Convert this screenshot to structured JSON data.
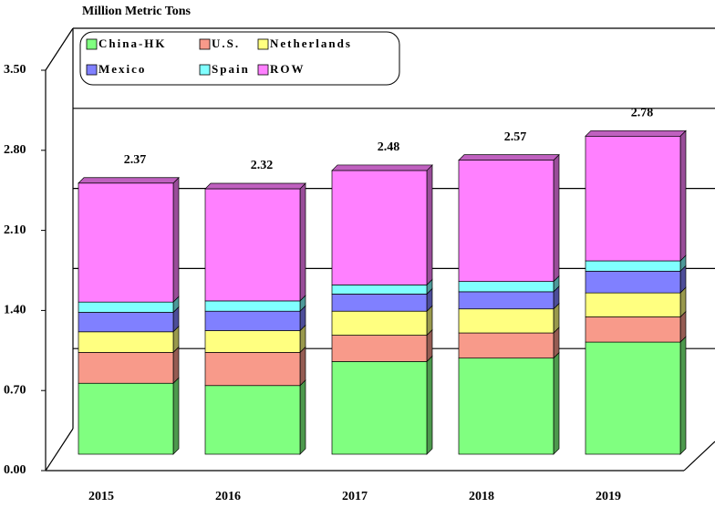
{
  "chart_data": {
    "type": "bar3d-stacked",
    "y_axis_label": "Million Metric Tons",
    "categories": [
      "2015",
      "2016",
      "2017",
      "2018",
      "2019"
    ],
    "series": [
      {
        "name": "China-HK",
        "color": "#80ff80",
        "values": [
          0.62,
          0.6,
          0.81,
          0.84,
          0.98
        ]
      },
      {
        "name": "U.S.",
        "color": "#f89a8a",
        "values": [
          0.27,
          0.29,
          0.23,
          0.22,
          0.22
        ]
      },
      {
        "name": "Netherlands",
        "color": "#ffff80",
        "values": [
          0.18,
          0.19,
          0.21,
          0.21,
          0.21
        ]
      },
      {
        "name": "Mexico",
        "color": "#8080ff",
        "values": [
          0.17,
          0.17,
          0.15,
          0.15,
          0.19
        ]
      },
      {
        "name": "Spain",
        "color": "#80ffff",
        "values": [
          0.09,
          0.09,
          0.08,
          0.09,
          0.09
        ]
      },
      {
        "name": "ROW",
        "color": "#ff80ff",
        "values": [
          1.04,
          0.98,
          1.0,
          1.06,
          1.09
        ]
      }
    ],
    "totals": [
      2.37,
      2.32,
      2.48,
      2.57,
      2.78
    ],
    "ylim": [
      0,
      3.5
    ],
    "yticks": [
      {
        "value": 0,
        "label": "0.00"
      },
      {
        "value": 0.7,
        "label": "0.70"
      },
      {
        "value": 1.4,
        "label": "1.40"
      },
      {
        "value": 2.1,
        "label": "2.10"
      },
      {
        "value": 2.8,
        "label": "2.80"
      },
      {
        "value": 3.5,
        "label": "3.50"
      }
    ],
    "grid": true
  }
}
